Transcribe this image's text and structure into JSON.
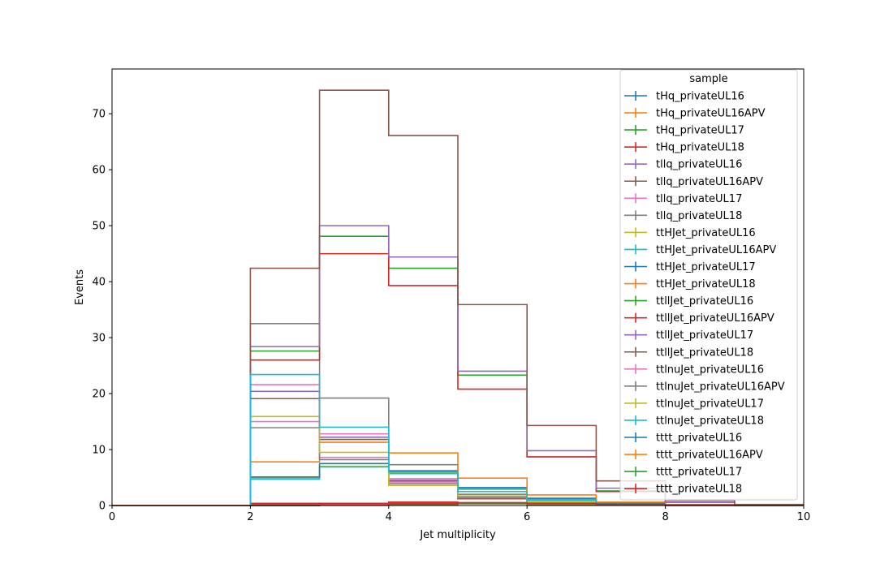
{
  "chart_data": {
    "type": "step",
    "xlabel": "Jet multiplicity",
    "ylabel": "Events",
    "xlim": [
      0,
      10
    ],
    "ylim": [
      0,
      78
    ],
    "xticks": [
      0,
      2,
      4,
      6,
      8,
      10
    ],
    "yticks": [
      0,
      10,
      20,
      30,
      40,
      50,
      60,
      70
    ],
    "bin_edges": [
      0,
      1,
      2,
      3,
      4,
      5,
      6,
      7,
      8,
      9,
      10
    ],
    "grid": false,
    "legend_title": "sample",
    "legend_position": "top-right",
    "series": [
      {
        "name": "tHq_privateUL16",
        "color": "#1f77b4",
        "values": [
          0,
          0,
          0.2,
          0.3,
          0.4,
          0.3,
          0.2,
          0.1,
          0.05,
          0
        ]
      },
      {
        "name": "tHq_privateUL16APV",
        "color": "#ff7f0e",
        "values": [
          0,
          0,
          0.2,
          0.3,
          0.4,
          0.3,
          0.2,
          0.1,
          0.05,
          0
        ]
      },
      {
        "name": "tHq_privateUL17",
        "color": "#2ca02c",
        "values": [
          0,
          0,
          0.2,
          0.3,
          0.5,
          0.4,
          0.2,
          0.1,
          0.05,
          0
        ]
      },
      {
        "name": "tHq_privateUL18",
        "color": "#d62728",
        "values": [
          0,
          0,
          0.4,
          0.4,
          0.6,
          0.5,
          0.3,
          0.1,
          0.05,
          0
        ]
      },
      {
        "name": "tllq_privateUL16",
        "color": "#9467bd",
        "values": [
          0,
          0,
          20.4,
          12.2,
          4.5,
          1.3,
          0.3,
          0.1,
          0,
          0
        ]
      },
      {
        "name": "tllq_privateUL16APV",
        "color": "#8c564b",
        "values": [
          0,
          0,
          19.1,
          11.8,
          4.3,
          1.2,
          0.3,
          0.1,
          0,
          0
        ]
      },
      {
        "name": "tllq_privateUL17",
        "color": "#e377c2",
        "values": [
          0,
          0,
          21.6,
          12.8,
          4.8,
          1.4,
          0.3,
          0.1,
          0,
          0
        ]
      },
      {
        "name": "tllq_privateUL18",
        "color": "#7f7f7f",
        "values": [
          0,
          0,
          32.5,
          19.2,
          7.3,
          2.0,
          0.5,
          0.1,
          0,
          0
        ]
      },
      {
        "name": "ttHJet_privateUL16",
        "color": "#bcbd22",
        "values": [
          0,
          0,
          4.9,
          7.0,
          5.9,
          3.0,
          1.2,
          0.4,
          0.1,
          0
        ]
      },
      {
        "name": "ttHJet_privateUL16APV",
        "color": "#17becf",
        "values": [
          0,
          0,
          4.7,
          6.9,
          5.7,
          2.9,
          1.1,
          0.4,
          0.1,
          0
        ]
      },
      {
        "name": "ttHJet_privateUL17",
        "color": "#1f77b4",
        "values": [
          0,
          0,
          5.1,
          7.5,
          6.2,
          3.2,
          1.3,
          0.4,
          0.1,
          0
        ]
      },
      {
        "name": "ttHJet_privateUL18",
        "color": "#ff7f0e",
        "values": [
          0,
          0,
          7.8,
          11.3,
          9.4,
          4.9,
          1.9,
          0.6,
          0.2,
          0
        ]
      },
      {
        "name": "ttllJet_privateUL16",
        "color": "#2ca02c",
        "values": [
          0,
          0,
          27.6,
          48.1,
          42.4,
          23.3,
          8.7,
          2.6,
          0.6,
          0.1
        ]
      },
      {
        "name": "ttllJet_privateUL16APV",
        "color": "#d62728",
        "values": [
          0,
          0,
          26.0,
          45.0,
          39.3,
          20.8,
          8.7,
          2.5,
          0.6,
          0.1
        ]
      },
      {
        "name": "ttllJet_privateUL17",
        "color": "#9467bd",
        "values": [
          0,
          0,
          28.4,
          50.0,
          44.4,
          24.0,
          9.8,
          3.1,
          0.7,
          0.1
        ]
      },
      {
        "name": "ttllJet_privateUL18",
        "color": "#8c564b",
        "values": [
          0,
          0,
          42.4,
          74.2,
          66.1,
          35.9,
          14.3,
          4.4,
          1.0,
          0.2
        ]
      },
      {
        "name": "ttlnuJet_privateUL16",
        "color": "#e377c2",
        "values": [
          0,
          0,
          15.0,
          8.6,
          4.2,
          1.6,
          0.5,
          0.1,
          0,
          0
        ]
      },
      {
        "name": "ttlnuJet_privateUL16APV",
        "color": "#7f7f7f",
        "values": [
          0,
          0,
          13.9,
          8.2,
          3.9,
          1.5,
          0.5,
          0.1,
          0,
          0
        ]
      },
      {
        "name": "ttlnuJet_privateUL17",
        "color": "#bcbd22",
        "values": [
          0,
          0,
          15.9,
          9.5,
          3.6,
          1.7,
          0.6,
          0.1,
          0,
          0
        ]
      },
      {
        "name": "ttlnuJet_privateUL18",
        "color": "#17becf",
        "values": [
          0,
          0,
          23.4,
          14.0,
          6.0,
          2.5,
          0.9,
          0.2,
          0,
          0
        ]
      },
      {
        "name": "tttt_privateUL16",
        "color": "#1f77b4",
        "values": [
          0,
          0,
          0,
          0.05,
          0.2,
          0.4,
          0.3,
          0.2,
          0.1,
          0
        ]
      },
      {
        "name": "tttt_privateUL16APV",
        "color": "#ff7f0e",
        "values": [
          0,
          0,
          0,
          0.05,
          0.2,
          0.4,
          0.3,
          0.2,
          0.1,
          0
        ]
      },
      {
        "name": "tttt_privateUL17",
        "color": "#2ca02c",
        "values": [
          0,
          0,
          0,
          0.05,
          0.2,
          0.4,
          0.3,
          0.2,
          0.1,
          0
        ]
      },
      {
        "name": "tttt_privateUL18",
        "color": "#d62728",
        "values": [
          0,
          0,
          0,
          0.05,
          0.3,
          0.5,
          0.4,
          0.2,
          0.1,
          0
        ]
      }
    ]
  }
}
